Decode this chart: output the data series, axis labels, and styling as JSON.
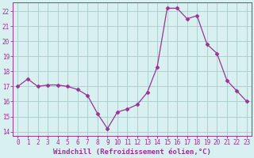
{
  "x": [
    0,
    1,
    2,
    3,
    4,
    5,
    6,
    7,
    8,
    9,
    10,
    11,
    12,
    13,
    14,
    15,
    16,
    17,
    18,
    19,
    20,
    21,
    22,
    23
  ],
  "y": [
    17.0,
    17.5,
    17.0,
    17.1,
    17.1,
    17.0,
    16.8,
    16.4,
    15.2,
    14.2,
    15.3,
    15.5,
    15.8,
    16.6,
    18.3,
    22.2,
    22.2,
    21.5,
    21.7,
    19.8,
    19.2,
    17.4,
    16.7,
    16.0
  ],
  "line_color": "#993399",
  "marker": "D",
  "marker_size": 2.5,
  "bg_color": "#d8f0f0",
  "grid_color": "#aacccc",
  "xlabel": "Windchill (Refroidissement éolien,°C)",
  "ylabel": "",
  "title": "",
  "xlim": [
    -0.5,
    23.5
  ],
  "ylim": [
    13.7,
    22.6
  ],
  "yticks": [
    14,
    15,
    16,
    17,
    18,
    19,
    20,
    21,
    22
  ],
  "xticks": [
    0,
    1,
    2,
    3,
    4,
    5,
    6,
    7,
    8,
    9,
    10,
    11,
    12,
    13,
    14,
    15,
    16,
    17,
    18,
    19,
    20,
    21,
    22,
    23
  ],
  "tick_color": "#993399",
  "tick_fontsize": 5.5,
  "xlabel_fontsize": 6.5
}
